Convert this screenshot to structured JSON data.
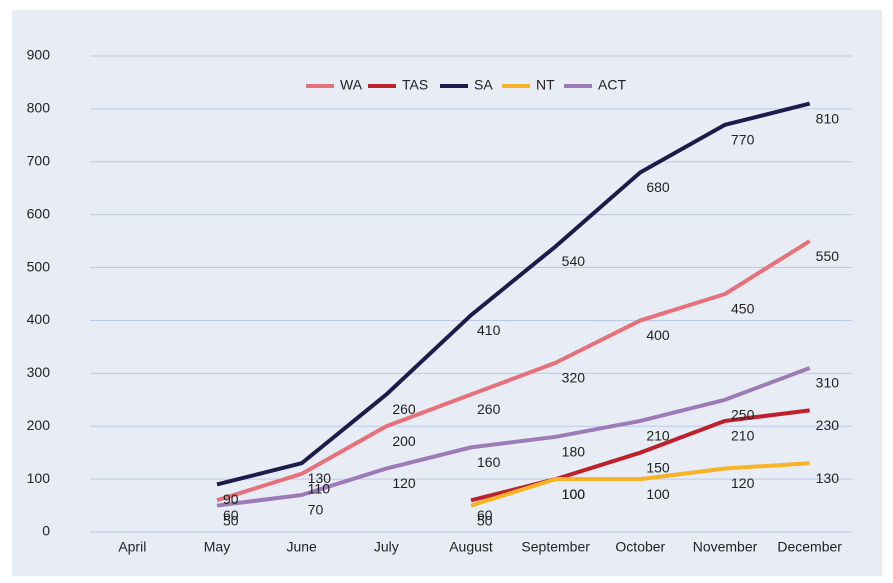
{
  "chart_data": {
    "type": "line",
    "categories": [
      "April",
      "May",
      "June",
      "July",
      "August",
      "September",
      "October",
      "November",
      "December"
    ],
    "series": [
      {
        "name": "WA",
        "color": "#e8707a",
        "values": [
          null,
          60,
          110,
          200,
          260,
          320,
          400,
          450,
          550
        ]
      },
      {
        "name": "TAS",
        "color": "#c0202c",
        "values": [
          null,
          null,
          null,
          null,
          60,
          100,
          150,
          210,
          230
        ]
      },
      {
        "name": "SA",
        "color": "#1d1b4c",
        "values": [
          null,
          90,
          130,
          260,
          410,
          540,
          680,
          770,
          810
        ]
      },
      {
        "name": "NT",
        "color": "#f6b325",
        "values": [
          null,
          null,
          null,
          null,
          50,
          100,
          100,
          120,
          130
        ]
      },
      {
        "name": "ACT",
        "color": "#9d7bb9",
        "values": [
          null,
          50,
          70,
          120,
          160,
          180,
          210,
          250,
          310
        ]
      }
    ],
    "ylim": [
      0,
      900
    ],
    "yticks": [
      0,
      100,
      200,
      300,
      400,
      500,
      600,
      700,
      800,
      900
    ],
    "grid": true,
    "legend": "top"
  }
}
